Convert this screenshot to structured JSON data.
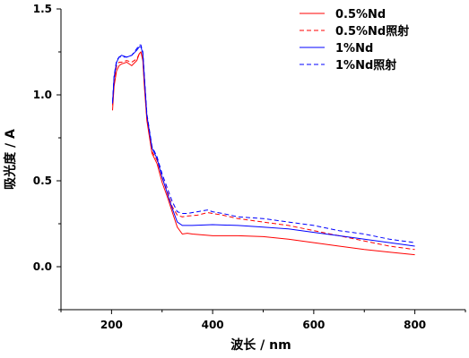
{
  "chart_data": {
    "type": "line",
    "xlabel": "波长 / nm",
    "ylabel": "吸光度 / A",
    "xlim": [
      100,
      900
    ],
    "ylim": [
      -0.25,
      1.5
    ],
    "xticks": [
      200,
      400,
      600,
      800
    ],
    "xtick_labels": [
      "200",
      "400",
      "600",
      "800"
    ],
    "yticks": [
      0.0,
      0.5,
      1.0,
      1.5
    ],
    "ytick_labels": [
      "0.0",
      "0.5",
      "1.0",
      "1.5"
    ],
    "grid": false,
    "legend_position": "top-right",
    "series": [
      {
        "name": "0.5%Nd",
        "color": "#ff0000",
        "dash": "solid",
        "x": [
          202,
          205,
          210,
          215,
          220,
          230,
          240,
          250,
          255,
          258,
          262,
          265,
          270,
          280,
          290,
          300,
          310,
          320,
          330,
          340,
          350,
          360,
          400,
          450,
          500,
          550,
          600,
          650,
          700,
          750,
          800
        ],
        "y": [
          0.91,
          1.05,
          1.14,
          1.17,
          1.18,
          1.19,
          1.17,
          1.2,
          1.24,
          1.25,
          1.2,
          1.05,
          0.85,
          0.66,
          0.6,
          0.49,
          0.41,
          0.32,
          0.23,
          0.19,
          0.195,
          0.19,
          0.18,
          0.18,
          0.175,
          0.16,
          0.14,
          0.12,
          0.1,
          0.085,
          0.07
        ]
      },
      {
        "name": "0.5%Nd照射",
        "color": "#ff0000",
        "dash": "dashed",
        "x": [
          202,
          205,
          210,
          215,
          220,
          230,
          240,
          250,
          255,
          258,
          262,
          265,
          270,
          280,
          290,
          300,
          310,
          320,
          330,
          340,
          350,
          370,
          390,
          400,
          420,
          450,
          500,
          550,
          600,
          650,
          700,
          750,
          800
        ],
        "y": [
          0.94,
          1.08,
          1.17,
          1.19,
          1.19,
          1.2,
          1.19,
          1.21,
          1.24,
          1.25,
          1.21,
          1.06,
          0.86,
          0.67,
          0.62,
          0.52,
          0.44,
          0.35,
          0.3,
          0.29,
          0.295,
          0.3,
          0.315,
          0.31,
          0.3,
          0.28,
          0.26,
          0.24,
          0.21,
          0.18,
          0.15,
          0.12,
          0.1
        ]
      },
      {
        "name": "1%Nd",
        "color": "#0000ff",
        "dash": "solid",
        "x": [
          202,
          205,
          210,
          215,
          220,
          230,
          240,
          250,
          255,
          258,
          262,
          265,
          270,
          280,
          290,
          300,
          310,
          320,
          330,
          340,
          350,
          360,
          400,
          450,
          500,
          550,
          600,
          650,
          700,
          750,
          800
        ],
        "y": [
          0.95,
          1.1,
          1.19,
          1.22,
          1.23,
          1.22,
          1.23,
          1.26,
          1.28,
          1.28,
          1.24,
          1.1,
          0.88,
          0.69,
          0.63,
          0.52,
          0.43,
          0.34,
          0.26,
          0.24,
          0.24,
          0.24,
          0.245,
          0.24,
          0.23,
          0.22,
          0.2,
          0.18,
          0.16,
          0.14,
          0.12
        ]
      },
      {
        "name": "1%Nd照射",
        "color": "#0000ff",
        "dash": "dashed",
        "x": [
          202,
          205,
          210,
          215,
          220,
          230,
          240,
          250,
          255,
          258,
          262,
          265,
          270,
          280,
          290,
          300,
          310,
          320,
          330,
          340,
          350,
          370,
          390,
          400,
          420,
          450,
          500,
          550,
          600,
          650,
          700,
          750,
          800
        ],
        "y": [
          0.96,
          1.11,
          1.2,
          1.22,
          1.22,
          1.22,
          1.23,
          1.27,
          1.29,
          1.29,
          1.25,
          1.11,
          0.89,
          0.7,
          0.64,
          0.54,
          0.46,
          0.38,
          0.32,
          0.31,
          0.31,
          0.32,
          0.33,
          0.32,
          0.31,
          0.29,
          0.28,
          0.26,
          0.24,
          0.21,
          0.19,
          0.16,
          0.14
        ]
      }
    ]
  }
}
